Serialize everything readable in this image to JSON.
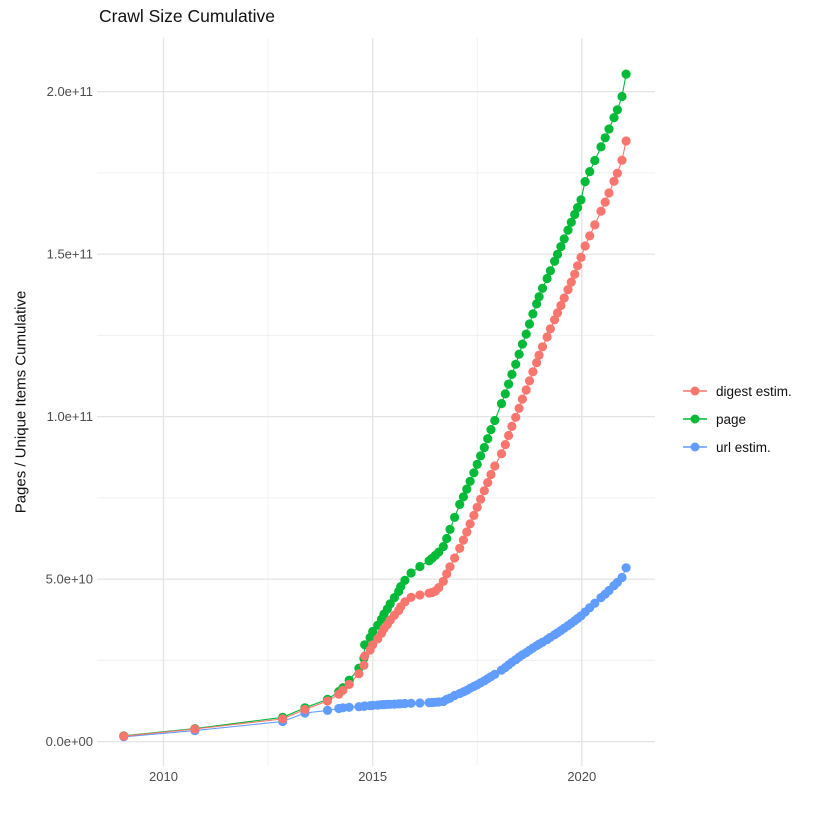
{
  "title": "Crawl Size Cumulative",
  "y_axis_title": "Pages / Unique Items Cumulative",
  "legend": {
    "items": [
      {
        "label": "digest estim.",
        "color": "#F8766D"
      },
      {
        "label": "page",
        "color": "#00BA38"
      },
      {
        "label": "url estim.",
        "color": "#619CFF"
      }
    ]
  },
  "chart_data": {
    "type": "scatter",
    "title": "Crawl Size Cumulative",
    "xlabel": "",
    "ylabel": "Pages / Unique Items Cumulative",
    "grid": "on",
    "legend_position": "right",
    "background_color": "#FFFFFF",
    "grid_major_color": "#E4E4E4",
    "grid_minor_color": "#F0F0F0",
    "axis_text_color": "#4D4D4D",
    "value_unit": "1e9 (values below are billions of pages / items)",
    "xlim": [
      2008.41,
      2021.75
    ],
    "ylim": [
      -7.5,
      216.5
    ],
    "x_ticks": [
      {
        "value": 2010,
        "label": "2010"
      },
      {
        "value": 2015,
        "label": "2015"
      },
      {
        "value": 2020,
        "label": "2020"
      }
    ],
    "x_minor_ticks": [
      2012.5,
      2017.5
    ],
    "y_ticks": [
      {
        "value": 0,
        "label": "0.0e+00"
      },
      {
        "value": 50,
        "label": "5.0e+10"
      },
      {
        "value": 100,
        "label": "1.0e+11"
      },
      {
        "value": 150,
        "label": "1.5e+11"
      },
      {
        "value": 200,
        "label": "2.0e+11"
      }
    ],
    "y_minor_ticks": [
      25,
      75,
      125,
      175
    ],
    "x_shared": [
      2009.05,
      2010.75,
      2012.85,
      2013.38,
      2013.92,
      2014.19,
      2014.29,
      2014.44,
      2014.67,
      2014.79,
      2014.81,
      2014.94,
      2015.0,
      2015.12,
      2015.21,
      2015.27,
      2015.35,
      2015.42,
      2015.52,
      2015.62,
      2015.67,
      2015.77,
      2015.92,
      2016.13,
      2016.35,
      2016.42,
      2016.5,
      2016.58,
      2016.69,
      2016.77,
      2016.85,
      2016.96,
      2017.08,
      2017.17,
      2017.25,
      2017.33,
      2017.42,
      2017.5,
      2017.58,
      2017.67,
      2017.75,
      2017.83,
      2017.92,
      2018.08,
      2018.17,
      2018.25,
      2018.33,
      2018.42,
      2018.5,
      2018.58,
      2018.67,
      2018.75,
      2018.83,
      2018.92,
      2018.98,
      2019.06,
      2019.17,
      2019.25,
      2019.35,
      2019.42,
      2019.5,
      2019.58,
      2019.67,
      2019.75,
      2019.83,
      2019.9,
      2019.98,
      2020.08,
      2020.19,
      2020.31,
      2020.46,
      2020.56,
      2020.65,
      2020.77,
      2020.85,
      2020.96,
      2021.06
    ],
    "series": [
      {
        "name": "digest estim.",
        "color": "#F8766D",
        "values": [
          1.7,
          3.9,
          7.0,
          9.9,
          12.5,
          14.6,
          15.8,
          17.6,
          20.9,
          23.5,
          26.3,
          28.2,
          29.8,
          31.6,
          33.3,
          34.7,
          36.0,
          37.4,
          38.9,
          40.3,
          41.5,
          43.0,
          44.4,
          45.1,
          45.7,
          45.9,
          46.3,
          47.4,
          49.3,
          51.6,
          53.8,
          56.5,
          59.5,
          62.0,
          64.5,
          67.0,
          69.6,
          72.1,
          74.6,
          77.2,
          79.7,
          82.2,
          84.8,
          88.6,
          91.4,
          94.2,
          97.0,
          99.8,
          102.6,
          105.4,
          108.2,
          111.0,
          113.8,
          116.6,
          118.9,
          121.5,
          124.5,
          127.0,
          129.8,
          131.9,
          134.2,
          136.5,
          139.1,
          141.4,
          143.8,
          146.4,
          149.0,
          152.5,
          155.6,
          159.0,
          163.2,
          166.0,
          168.8,
          172.4,
          174.9,
          178.9,
          184.8
        ]
      },
      {
        "name": "page",
        "color": "#00BA38",
        "values": [
          1.8,
          4.0,
          7.5,
          10.4,
          13.0,
          15.4,
          16.6,
          18.9,
          22.6,
          25.6,
          29.8,
          32.0,
          33.9,
          35.8,
          37.6,
          39.2,
          40.8,
          42.4,
          44.3,
          46.2,
          47.7,
          49.6,
          51.9,
          53.9,
          55.6,
          56.4,
          57.3,
          58.3,
          60.0,
          62.5,
          65.3,
          69.0,
          73.0,
          75.3,
          77.7,
          80.1,
          82.7,
          85.3,
          87.9,
          90.5,
          93.2,
          96.0,
          98.8,
          104.0,
          107.0,
          110.0,
          113.0,
          116.1,
          119.2,
          122.3,
          125.4,
          128.5,
          131.6,
          134.7,
          136.9,
          139.5,
          142.5,
          144.9,
          147.8,
          149.9,
          152.3,
          154.7,
          157.4,
          159.8,
          162.2,
          164.3,
          166.7,
          172.3,
          175.4,
          178.8,
          183.0,
          185.8,
          188.5,
          192.0,
          194.4,
          198.5,
          205.4
        ]
      },
      {
        "name": "url estim.",
        "color": "#619CFF",
        "values": [
          1.5,
          3.4,
          6.2,
          8.8,
          9.6,
          10.2,
          10.4,
          10.55,
          10.75,
          10.85,
          10.95,
          11.05,
          11.15,
          11.25,
          11.35,
          11.4,
          11.45,
          11.5,
          11.55,
          11.6,
          11.65,
          11.72,
          11.8,
          11.9,
          12.0,
          12.05,
          12.1,
          12.2,
          12.35,
          13.0,
          13.4,
          14.2,
          14.8,
          15.3,
          15.8,
          16.4,
          17.0,
          17.5,
          18.1,
          18.7,
          19.4,
          20.0,
          20.7,
          22.0,
          22.8,
          23.6,
          24.4,
          25.2,
          26.0,
          26.7,
          27.4,
          28.1,
          28.8,
          29.5,
          30.0,
          30.6,
          31.4,
          32.1,
          32.9,
          33.5,
          34.2,
          34.9,
          35.7,
          36.4,
          37.2,
          37.9,
          38.7,
          39.9,
          41.2,
          42.6,
          44.3,
          45.4,
          46.5,
          48.0,
          49.0,
          50.5,
          53.5
        ]
      }
    ]
  }
}
